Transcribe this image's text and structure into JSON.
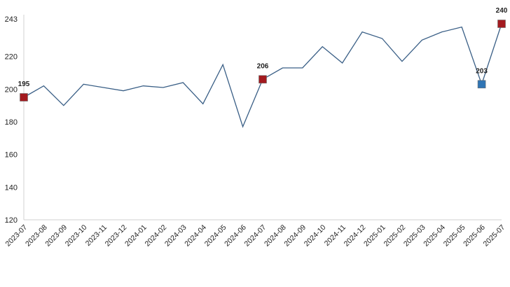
{
  "chart_data": {
    "type": "line",
    "title": "",
    "xlabel": "",
    "ylabel": "",
    "ylim": [
      120,
      243
    ],
    "yticks": [
      120,
      140,
      160,
      180,
      200,
      220,
      243
    ],
    "grid": false,
    "legend": "none",
    "categories": [
      "2023-07",
      "2023-08",
      "2023-09",
      "2023-10",
      "2023-11",
      "2023-12",
      "2024-01",
      "2024-02",
      "2024-03",
      "2024-04",
      "2024-05",
      "2024-06",
      "2024-07",
      "2024-08",
      "2024-09",
      "2024-10",
      "2024-11",
      "2024-12",
      "2025-01",
      "2025-02",
      "2025-03",
      "2025-04",
      "2025-05",
      "2025-06",
      "2025-07"
    ],
    "series": [
      {
        "values": [
          195,
          202,
          190,
          203,
          201,
          199,
          202,
          201,
          204,
          191,
          215,
          177,
          206,
          213,
          213,
          226,
          216,
          235,
          231,
          217,
          230,
          235,
          238,
          203,
          240
        ],
        "color": "#3a5f86"
      }
    ],
    "markers": [
      {
        "index": 0,
        "label": "195",
        "color": "#a31a1f"
      },
      {
        "index": 12,
        "label": "206",
        "color": "#a31a1f"
      },
      {
        "index": 23,
        "label": "203",
        "color": "#2f75b5"
      },
      {
        "index": 24,
        "label": "240",
        "color": "#a31a1f"
      }
    ]
  }
}
